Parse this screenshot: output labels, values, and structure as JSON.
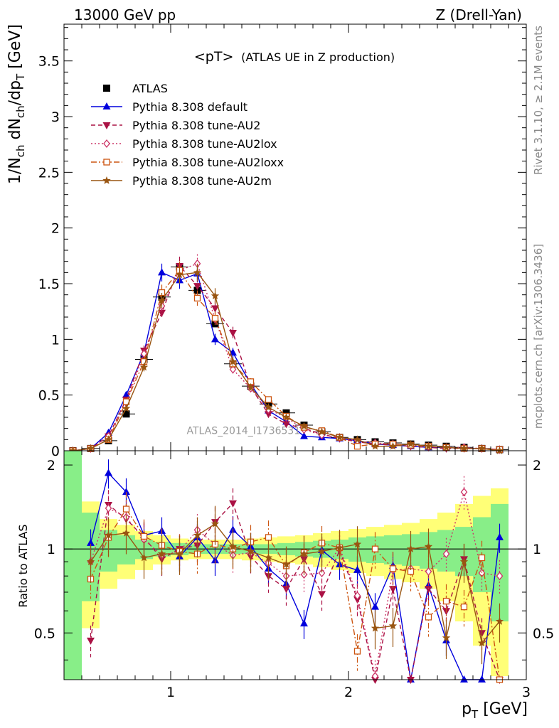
{
  "header": {
    "left": "13000 GeV pp",
    "right": "Z (Drell-Yan)"
  },
  "side": {
    "rivet": "Rivet 3.1.10, ≥ 2.1M events",
    "mcplots": "mcplots.cern.ch [arXiv:1306.3436]"
  },
  "chart_data": [
    {
      "type": "line",
      "panel": "main",
      "title": "<pT> (ATLAS UE in Z production)",
      "title_main": "<pT>",
      "title_rest": "(ATLAS UE in Z production)",
      "xlabel": "",
      "ylabel": "1/N_ch dN_ch/dp_T [GeV]",
      "ylabel_parts": {
        "a": "1/N",
        "a_sub": "ch",
        "b": " dN",
        "b_sub": "ch",
        "c": "/dp",
        "c_sub": "T",
        "d": " [GeV]"
      },
      "xlim": [
        0.4,
        3.0
      ],
      "ylim": [
        0,
        3.83
      ],
      "yticks": [
        0,
        0.5,
        1,
        1.5,
        2,
        2.5,
        3,
        3.5
      ],
      "ytick_labels": [
        "0",
        "0.5",
        "1",
        "1.5",
        "2",
        "2.5",
        "3",
        "3.5"
      ],
      "legend_placement": "top-left",
      "watermark": "ATLAS_2014_I1736531",
      "x": [
        0.45,
        0.55,
        0.65,
        0.75,
        0.85,
        0.95,
        1.05,
        1.15,
        1.25,
        1.35,
        1.45,
        1.55,
        1.65,
        1.75,
        1.85,
        1.95,
        2.05,
        2.15,
        2.25,
        2.35,
        2.45,
        2.55,
        2.65,
        2.75,
        2.85
      ],
      "series": [
        {
          "name": "ATLAS",
          "color": "#000000",
          "marker": "square",
          "line": "none",
          "values": [
            0.0,
            0.02,
            0.09,
            0.33,
            0.82,
            1.38,
            1.65,
            1.44,
            1.14,
            0.78,
            0.58,
            0.42,
            0.34,
            0.23,
            0.17,
            0.12,
            0.1,
            0.08,
            0.07,
            0.06,
            0.05,
            0.04,
            0.03,
            0.02,
            0.01
          ]
        },
        {
          "name": "Pythia 8.308 default",
          "color": "#0000dd",
          "marker": "triangle-up",
          "line": "solid",
          "values": [
            0.0,
            0.02,
            0.16,
            0.5,
            0.88,
            1.6,
            1.53,
            1.59,
            1.0,
            0.88,
            0.6,
            0.36,
            0.26,
            0.13,
            0.12,
            0.11,
            0.09,
            0.06,
            0.05,
            0.04,
            0.03,
            0.03,
            0.02,
            0.02,
            0.01
          ]
        },
        {
          "name": "Pythia 8.308 tune-AU2",
          "color": "#aa1144",
          "marker": "triangle-down",
          "line": "dashed",
          "values": [
            0.0,
            0.02,
            0.13,
            0.46,
            0.9,
            1.24,
            1.66,
            1.48,
            1.28,
            1.06,
            0.57,
            0.33,
            0.24,
            0.2,
            0.15,
            0.11,
            0.08,
            0.06,
            0.05,
            0.04,
            0.03,
            0.02,
            0.02,
            0.02,
            0.01
          ]
        },
        {
          "name": "Pythia 8.308 tune-AU2lox",
          "color": "#cc3366",
          "marker": "diamond-open",
          "line": "dotted",
          "values": [
            0.0,
            0.02,
            0.13,
            0.43,
            0.87,
            1.3,
            1.62,
            1.68,
            1.18,
            0.73,
            0.56,
            0.37,
            0.3,
            0.19,
            0.14,
            0.12,
            0.09,
            0.07,
            0.06,
            0.05,
            0.04,
            0.03,
            0.03,
            0.02,
            0.01
          ]
        },
        {
          "name": "Pythia 8.308 tune-AU2loxx",
          "color": "#cc5511",
          "marker": "square-open",
          "line": "dashdot",
          "values": [
            0.0,
            0.02,
            0.1,
            0.44,
            0.8,
            1.42,
            1.62,
            1.37,
            1.19,
            0.78,
            0.62,
            0.46,
            0.31,
            0.21,
            0.18,
            0.12,
            0.04,
            0.06,
            0.06,
            0.05,
            0.04,
            0.03,
            0.02,
            0.02,
            0.01
          ]
        },
        {
          "name": "Pythia 8.308 tune-AU2m",
          "color": "#995511",
          "marker": "star",
          "line": "solid",
          "values": [
            0.0,
            0.02,
            0.1,
            0.38,
            0.75,
            1.35,
            1.58,
            1.6,
            1.39,
            0.8,
            0.57,
            0.39,
            0.3,
            0.22,
            0.17,
            0.12,
            0.1,
            0.04,
            0.04,
            0.06,
            0.04,
            0.03,
            0.02,
            0.02,
            0.0
          ]
        }
      ]
    },
    {
      "type": "line",
      "panel": "ratio",
      "xlabel": "p_T [GeV]",
      "xlabel_parts": {
        "a": "p",
        "a_sub": "T",
        "b": " [GeV]"
      },
      "ylabel": "Ratio to ATLAS",
      "xlim": [
        0.4,
        3.0
      ],
      "ylim": [
        0.34,
        2.25
      ],
      "xticks": [
        1,
        2,
        3
      ],
      "xtick_labels": [
        "1",
        "2",
        "3"
      ],
      "yticks": [
        0.5,
        1,
        2
      ],
      "ytick_labels": [
        "0.5",
        "1",
        "2"
      ],
      "reference": 1.0,
      "band_x": [
        0.45,
        0.55,
        0.65,
        0.75,
        0.85,
        0.95,
        1.05,
        1.15,
        1.25,
        1.35,
        1.45,
        1.55,
        1.65,
        1.75,
        1.85,
        1.95,
        2.05,
        2.15,
        2.25,
        2.35,
        2.45,
        2.55,
        2.65,
        2.75,
        2.85
      ],
      "band_inner": [
        10,
        0.35,
        0.17,
        0.12,
        0.08,
        0.06,
        0.05,
        0.04,
        0.04,
        0.04,
        0.04,
        0.04,
        0.05,
        0.06,
        0.07,
        0.08,
        0.1,
        0.11,
        0.12,
        0.13,
        0.15,
        0.17,
        0.2,
        0.3,
        0.45
      ],
      "band_outer": [
        10,
        0.48,
        0.28,
        0.22,
        0.16,
        0.12,
        0.09,
        0.08,
        0.08,
        0.08,
        0.09,
        0.1,
        0.11,
        0.12,
        0.14,
        0.16,
        0.18,
        0.2,
        0.22,
        0.24,
        0.28,
        0.35,
        0.45,
        0.55,
        0.65
      ],
      "band_colors": {
        "inner": "#88ee88",
        "outer": "#ffff77"
      },
      "x": [
        0.55,
        0.65,
        0.75,
        0.85,
        0.95,
        1.05,
        1.15,
        1.25,
        1.35,
        1.45,
        1.55,
        1.65,
        1.75,
        1.85,
        1.95,
        2.05,
        2.15,
        2.25,
        2.35,
        2.45,
        2.55,
        2.65,
        2.75,
        2.85
      ],
      "series": [
        {
          "name": "Pythia 8.308 default",
          "color": "#0000dd",
          "marker": "triangle-up",
          "line": "solid",
          "values": [
            1.05,
            1.87,
            1.6,
            1.12,
            1.16,
            0.94,
            1.1,
            0.91,
            1.17,
            1.02,
            0.85,
            0.75,
            0.54,
            0.99,
            0.88,
            0.84,
            0.62,
            0.87,
            0.25,
            0.74,
            0.47,
            0.3,
            0.2,
            1.1
          ]
        },
        {
          "name": "Pythia 8.308 tune-AU2",
          "color": "#aa1144",
          "marker": "triangle-down",
          "line": "dashed",
          "values": [
            0.47,
            1.44,
            1.28,
            1.1,
            0.92,
            1.0,
            1.03,
            1.25,
            1.46,
            0.94,
            0.8,
            0.72,
            0.92,
            0.69,
            0.99,
            0.66,
            0.3,
            0.72,
            0.3,
            0.72,
            0.6,
            0.92,
            0.5,
            0.3
          ]
        },
        {
          "name": "Pythia 8.308 tune-AU2lox",
          "color": "#cc3366",
          "marker": "diamond-open",
          "line": "dotted",
          "values": [
            0.9,
            1.4,
            1.3,
            1.08,
            0.95,
            0.98,
            1.17,
            1.04,
            0.95,
            0.97,
            0.89,
            0.8,
            0.81,
            0.82,
            1.01,
            0.68,
            0.35,
            0.84,
            0.85,
            0.83,
            0.96,
            1.6,
            0.82,
            0.8
          ]
        },
        {
          "name": "Pythia 8.308 tune-AU2loxx",
          "color": "#cc5511",
          "marker": "square-open",
          "line": "dashdot",
          "values": [
            0.78,
            1.1,
            1.39,
            1.11,
            1.03,
            0.98,
            0.96,
            1.04,
            1.0,
            1.06,
            1.1,
            0.87,
            0.97,
            1.05,
            1.01,
            0.43,
            1.0,
            0.85,
            0.83,
            0.57,
            0.65,
            0.62,
            0.93,
            0.3
          ]
        },
        {
          "name": "Pythia 8.308 tune-AU2m",
          "color": "#995511",
          "marker": "star",
          "line": "solid",
          "values": [
            0.9,
            1.12,
            1.14,
            0.93,
            0.96,
            0.96,
            1.12,
            1.23,
            1.02,
            0.98,
            0.93,
            0.88,
            0.96,
            0.98,
            1.01,
            1.04,
            0.52,
            0.53,
            1.0,
            1.02,
            0.48,
            0.9,
            0.46,
            0.55
          ]
        }
      ]
    }
  ]
}
